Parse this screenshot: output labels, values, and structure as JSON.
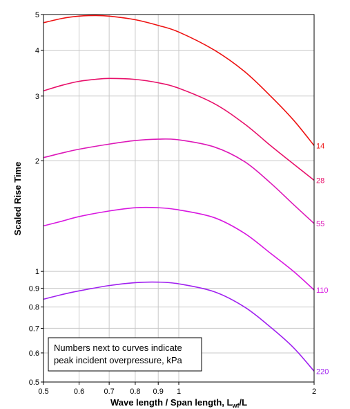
{
  "chart_data": {
    "type": "line",
    "title": "",
    "xlabel": "Wave length / Span length, L",
    "xlabel_sub": "wf",
    "xlabel_suffix": "/L",
    "ylabel": "Scaled Rise Time",
    "xscale": "log",
    "yscale": "log",
    "xlim": [
      0.5,
      2
    ],
    "ylim": [
      0.5,
      5
    ],
    "grid": true,
    "x_ticks": [
      {
        "value": 0.5,
        "label": "0.5"
      },
      {
        "value": 0.6,
        "label": "0.6"
      },
      {
        "value": 0.7,
        "label": "0.7"
      },
      {
        "value": 0.8,
        "label": "0.8"
      },
      {
        "value": 0.9,
        "label": "0.9"
      },
      {
        "value": 1,
        "label": "1"
      },
      {
        "value": 2,
        "label": "2"
      }
    ],
    "y_ticks": [
      {
        "value": 0.5,
        "label": "0.5"
      },
      {
        "value": 0.6,
        "label": "0.6"
      },
      {
        "value": 0.7,
        "label": "0.7"
      },
      {
        "value": 0.8,
        "label": "0.8"
      },
      {
        "value": 0.9,
        "label": "0.9"
      },
      {
        "value": 1,
        "label": "1"
      },
      {
        "value": 2,
        "label": "2"
      },
      {
        "value": 3,
        "label": "3"
      },
      {
        "value": 4,
        "label": "4"
      },
      {
        "value": 5,
        "label": "5"
      }
    ],
    "series": [
      {
        "name": "14",
        "color": "#ee1111",
        "x": [
          0.5,
          0.55,
          0.6,
          0.65,
          0.7,
          0.8,
          0.9,
          1.0,
          1.2,
          1.4,
          1.6,
          1.8,
          2.0
        ],
        "y": [
          4.75,
          4.88,
          4.95,
          4.97,
          4.95,
          4.84,
          4.67,
          4.48,
          4.0,
          3.5,
          3.0,
          2.58,
          2.2
        ]
      },
      {
        "name": "28",
        "color": "#e8106a",
        "x": [
          0.5,
          0.55,
          0.6,
          0.65,
          0.7,
          0.8,
          0.9,
          1.0,
          1.2,
          1.4,
          1.6,
          1.8,
          2.0
        ],
        "y": [
          3.1,
          3.21,
          3.29,
          3.33,
          3.35,
          3.33,
          3.26,
          3.15,
          2.86,
          2.52,
          2.2,
          1.96,
          1.77
        ]
      },
      {
        "name": "55",
        "color": "#dd18b8",
        "x": [
          0.5,
          0.55,
          0.6,
          0.7,
          0.8,
          0.9,
          1.0,
          1.2,
          1.4,
          1.6,
          1.8,
          2.0
        ],
        "y": [
          2.04,
          2.1,
          2.15,
          2.22,
          2.27,
          2.29,
          2.28,
          2.18,
          1.99,
          1.74,
          1.52,
          1.35
        ]
      },
      {
        "name": "110",
        "color": "#d818e0",
        "x": [
          0.5,
          0.55,
          0.6,
          0.7,
          0.8,
          0.9,
          1.0,
          1.2,
          1.4,
          1.6,
          1.8,
          2.0
        ],
        "y": [
          1.33,
          1.37,
          1.41,
          1.46,
          1.49,
          1.49,
          1.47,
          1.4,
          1.27,
          1.12,
          1.0,
          0.89
        ]
      },
      {
        "name": "220",
        "color": "#a020f0",
        "x": [
          0.5,
          0.55,
          0.6,
          0.7,
          0.8,
          0.9,
          1.0,
          1.2,
          1.4,
          1.6,
          1.8,
          2.0
        ],
        "y": [
          0.84,
          0.865,
          0.885,
          0.915,
          0.932,
          0.935,
          0.925,
          0.88,
          0.8,
          0.705,
          0.62,
          0.535
        ]
      }
    ],
    "annotation": [
      "Numbers next to curves indicate",
      "peak incident overpressure, kPa"
    ]
  }
}
